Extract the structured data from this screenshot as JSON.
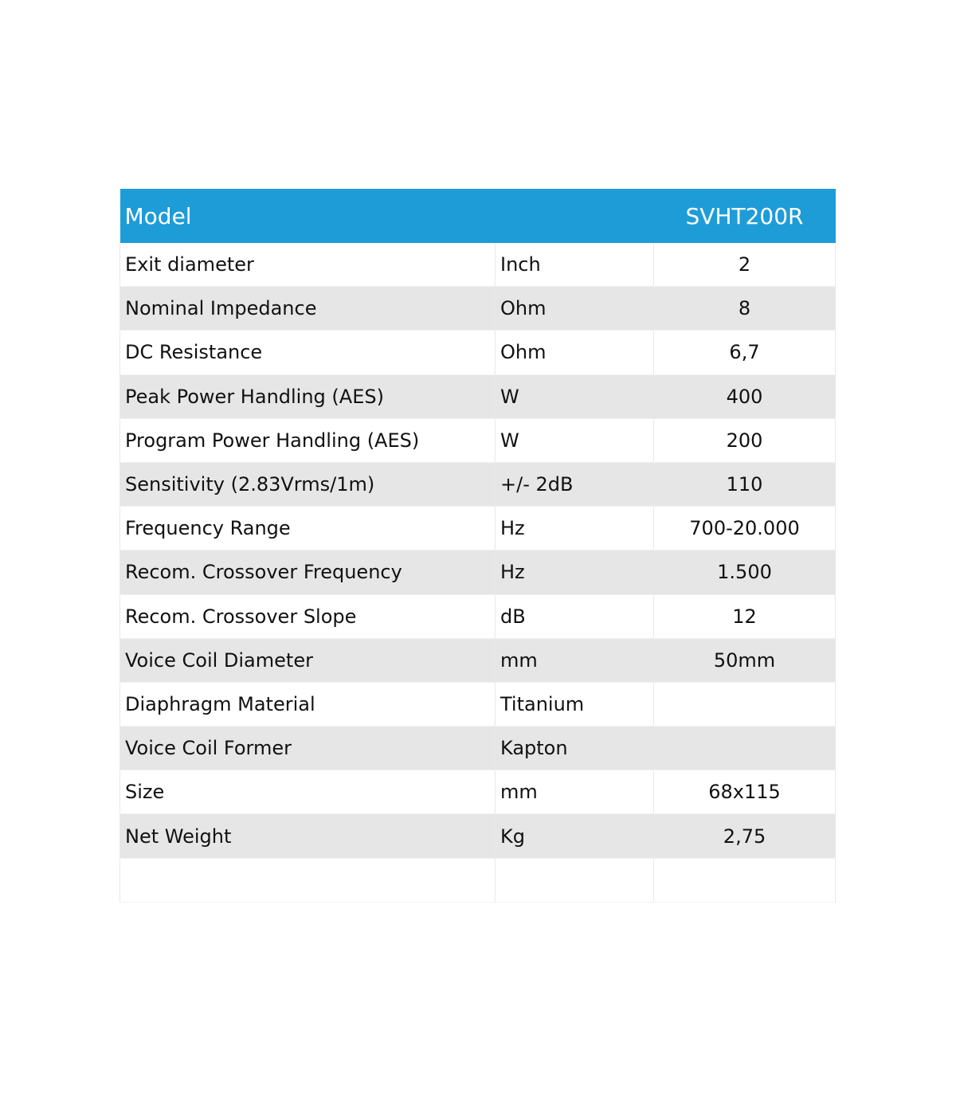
{
  "header": {
    "label": "Model",
    "model": "SVHT200R"
  },
  "rows": [
    {
      "param": "Exit diameter",
      "unit": "Inch",
      "value": "2"
    },
    {
      "param": "Nominal Impedance",
      "unit": "Ohm",
      "value": "8"
    },
    {
      "param": "DC Resistance",
      "unit": "Ohm",
      "value": "6,7"
    },
    {
      "param": "Peak Power Handling (AES)",
      "unit": "W",
      "value": "400"
    },
    {
      "param": "Program Power Handling (AES)",
      "unit": "W",
      "value": "200"
    },
    {
      "param": "Sensitivity (2.83Vrms/1m)",
      "unit": " +/- 2dB",
      "value": "110"
    },
    {
      "param": "Frequency Range",
      "unit": "Hz",
      "value": "700-20.000"
    },
    {
      "param": "Recom. Crossover Frequency",
      "unit": "Hz",
      "value": "1.500"
    },
    {
      "param": "Recom. Crossover Slope",
      "unit": "dB",
      "value": "12"
    },
    {
      "param": "Voice Coil Diameter",
      "unit": "mm",
      "value": "50mm"
    },
    {
      "param": "Diaphragm Material",
      "unit": "Titanium",
      "value": ""
    },
    {
      "param": "Voice Coil Former",
      "unit": "Kapton",
      "value": ""
    },
    {
      "param": "Size",
      "unit": "mm",
      "value": "68x115"
    },
    {
      "param": "Net Weight",
      "unit": "Kg",
      "value": "2,75"
    },
    {
      "param": "",
      "unit": "",
      "value": ""
    }
  ],
  "colors": {
    "header": "#1e9cd8",
    "alt_row": "#e6e6e6"
  }
}
